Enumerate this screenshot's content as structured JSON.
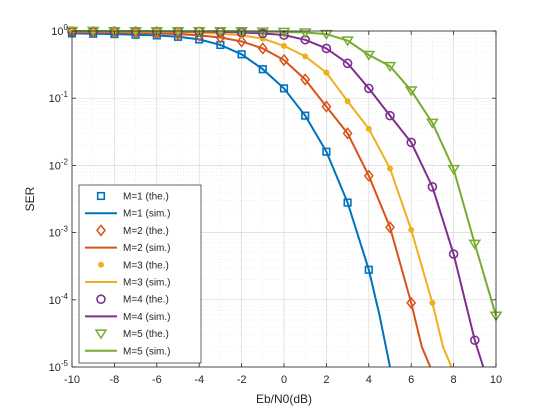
{
  "chart_data": {
    "type": "line",
    "title": "",
    "xlabel": "Eb/N0(dB)",
    "ylabel": "SER",
    "xlim": [
      -10,
      10
    ],
    "ylim": [
      1e-05,
      1
    ],
    "yscale": "log",
    "grid": true,
    "minor_grid": true,
    "legend_position": "bottom-left",
    "x_ticks": [
      -10,
      -8,
      -6,
      -4,
      -2,
      0,
      2,
      4,
      6,
      8,
      10
    ],
    "x_tick_labels": [
      "-10",
      "-8",
      "-6",
      "-4",
      "-2",
      "0",
      "2",
      "4",
      "6",
      "8",
      "10"
    ],
    "y_ticks": [
      1e-05,
      0.0001,
      0.001,
      0.01,
      0.1,
      1
    ],
    "y_tick_labels": [
      {
        "base": "10",
        "exp": "-5"
      },
      {
        "base": "10",
        "exp": "-4"
      },
      {
        "base": "10",
        "exp": "-3"
      },
      {
        "base": "10",
        "exp": "-2"
      },
      {
        "base": "10",
        "exp": "-1"
      },
      {
        "base": "10",
        "exp": "0"
      }
    ],
    "series": [
      {
        "name": "M=1 (the.)",
        "kind": "marker",
        "marker": "square",
        "color": "#0072BD",
        "x": [
          -10,
          -9,
          -8,
          -7,
          -6,
          -5,
          -4,
          -3,
          -2,
          -1,
          0,
          1,
          2,
          3,
          4
        ],
        "y": [
          0.92,
          0.91,
          0.9,
          0.88,
          0.86,
          0.82,
          0.75,
          0.62,
          0.45,
          0.27,
          0.14,
          0.055,
          0.016,
          0.0028,
          0.00028
        ]
      },
      {
        "name": "M=1 (sim.)",
        "kind": "line",
        "color": "#0072BD",
        "x": [
          -10,
          -9,
          -8,
          -7,
          -6,
          -5,
          -4,
          -3,
          -2,
          -1,
          0,
          1,
          2,
          3,
          4,
          4.5,
          5
        ],
        "y": [
          0.92,
          0.91,
          0.9,
          0.88,
          0.86,
          0.82,
          0.75,
          0.62,
          0.45,
          0.27,
          0.14,
          0.055,
          0.016,
          0.0028,
          0.00028,
          6e-05,
          1e-05
        ]
      },
      {
        "name": "M=2 (the.)",
        "kind": "marker",
        "marker": "diamond",
        "color": "#D95319",
        "x": [
          -10,
          -9,
          -8,
          -7,
          -6,
          -5,
          -4,
          -3,
          -2,
          -1,
          0,
          1,
          2,
          3,
          4,
          5,
          6
        ],
        "y": [
          0.96,
          0.96,
          0.95,
          0.94,
          0.92,
          0.9,
          0.86,
          0.8,
          0.7,
          0.55,
          0.37,
          0.19,
          0.075,
          0.03,
          0.007,
          0.0012,
          9e-05
        ]
      },
      {
        "name": "M=2 (sim.)",
        "kind": "line",
        "color": "#D95319",
        "x": [
          -10,
          -9,
          -8,
          -7,
          -6,
          -5,
          -4,
          -3,
          -2,
          -1,
          0,
          1,
          2,
          3,
          4,
          5,
          6,
          6.5,
          6.9
        ],
        "y": [
          0.96,
          0.96,
          0.95,
          0.94,
          0.92,
          0.9,
          0.86,
          0.8,
          0.7,
          0.55,
          0.37,
          0.19,
          0.075,
          0.03,
          0.007,
          0.0012,
          9e-05,
          2e-05,
          1e-05
        ]
      },
      {
        "name": "M=3 (the.)",
        "kind": "marker",
        "marker": "dot",
        "color": "#EDB120",
        "x": [
          -10,
          -9,
          -8,
          -7,
          -6,
          -5,
          -4,
          -3,
          -2,
          -1,
          0,
          1,
          2,
          3,
          4,
          5,
          6,
          7
        ],
        "y": [
          0.98,
          0.98,
          0.98,
          0.97,
          0.97,
          0.96,
          0.94,
          0.91,
          0.86,
          0.77,
          0.6,
          0.42,
          0.24,
          0.09,
          0.035,
          0.009,
          0.0011,
          9e-05
        ]
      },
      {
        "name": "M=3 (sim.)",
        "kind": "line",
        "color": "#EDB120",
        "x": [
          -10,
          -9,
          -8,
          -7,
          -6,
          -5,
          -4,
          -3,
          -2,
          -1,
          0,
          1,
          2,
          3,
          4,
          5,
          6,
          7,
          7.5,
          7.9
        ],
        "y": [
          0.98,
          0.98,
          0.98,
          0.97,
          0.97,
          0.96,
          0.94,
          0.91,
          0.86,
          0.77,
          0.6,
          0.42,
          0.24,
          0.09,
          0.035,
          0.009,
          0.0011,
          9e-05,
          2e-05,
          1e-05
        ]
      },
      {
        "name": "M=4 (the.)",
        "kind": "marker",
        "marker": "circle",
        "color": "#7E2F8E",
        "x": [
          -10,
          -9,
          -8,
          -7,
          -6,
          -5,
          -4,
          -3,
          -2,
          -1,
          0,
          1,
          2,
          3,
          4,
          5,
          6,
          7,
          8,
          9
        ],
        "y": [
          0.99,
          0.99,
          0.99,
          0.99,
          0.99,
          0.98,
          0.98,
          0.97,
          0.95,
          0.92,
          0.87,
          0.74,
          0.55,
          0.33,
          0.14,
          0.055,
          0.022,
          0.0048,
          0.00048,
          2.5e-05
        ]
      },
      {
        "name": "M=4 (sim.)",
        "kind": "line",
        "color": "#7E2F8E",
        "x": [
          -10,
          -9,
          -8,
          -7,
          -6,
          -5,
          -4,
          -3,
          -2,
          -1,
          0,
          1,
          2,
          3,
          4,
          5,
          6,
          7,
          8,
          9,
          9.4
        ],
        "y": [
          0.99,
          0.99,
          0.99,
          0.99,
          0.99,
          0.98,
          0.98,
          0.97,
          0.95,
          0.92,
          0.87,
          0.74,
          0.55,
          0.33,
          0.14,
          0.055,
          0.022,
          0.0048,
          0.00048,
          2.5e-05,
          1e-05
        ]
      },
      {
        "name": "M=5 (the.)",
        "kind": "marker",
        "marker": "triangle-down",
        "color": "#77AC30",
        "x": [
          -10,
          -9,
          -8,
          -7,
          -6,
          -5,
          -4,
          -3,
          -2,
          -1,
          0,
          1,
          2,
          3,
          4,
          5,
          6,
          7,
          8,
          9,
          10
        ],
        "y": [
          1.0,
          1.0,
          0.99,
          0.99,
          0.99,
          0.99,
          0.99,
          0.99,
          0.99,
          0.98,
          0.97,
          0.95,
          0.9,
          0.72,
          0.44,
          0.3,
          0.13,
          0.043,
          0.0088,
          0.00068,
          5.8e-05
        ]
      },
      {
        "name": "M=5 (sim.)",
        "kind": "line",
        "color": "#77AC30",
        "x": [
          -10,
          -9,
          -8,
          -7,
          -6,
          -5,
          -4,
          -3,
          -2,
          -1,
          0,
          1,
          2,
          3,
          4,
          5,
          6,
          7,
          8,
          9,
          10
        ],
        "y": [
          1.0,
          1.0,
          0.99,
          0.99,
          0.99,
          0.99,
          0.99,
          0.99,
          0.99,
          0.98,
          0.97,
          0.95,
          0.9,
          0.72,
          0.44,
          0.3,
          0.13,
          0.043,
          0.0088,
          0.00068,
          5.8e-05
        ]
      }
    ]
  }
}
